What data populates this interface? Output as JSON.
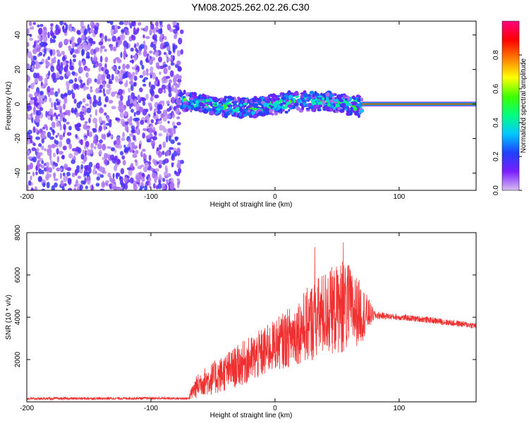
{
  "title": "YM08.2025.262.02.26.C30",
  "chart_data": [
    {
      "type": "heatmap",
      "name": "spectrogram",
      "xlabel": "Height of straight line (km)",
      "ylabel": "Frequency (Hz)",
      "xlim": [
        -200,
        162
      ],
      "ylim": [
        -50,
        48
      ],
      "xticks": [
        -200,
        -100,
        0,
        100
      ],
      "yticks": [
        -40,
        -20,
        0,
        20,
        40
      ],
      "colorbar": {
        "label": "Normalized spectral amplitude",
        "range": [
          0,
          1
        ],
        "ticks": [
          "0.0",
          "0.2",
          "0.4",
          "0.6",
          "0.8"
        ],
        "tick_values": [
          0.0,
          0.2,
          0.4,
          0.6,
          0.8
        ],
        "colormap": [
          "#d8bff0",
          "#7a1fff",
          "#1f3fff",
          "#00c8ff",
          "#00ff80",
          "#40ff00",
          "#ffff00",
          "#ff8000",
          "#ff0000",
          "#ff0080"
        ]
      },
      "regions": [
        {
          "desc": "noise",
          "x": [
            -200,
            -75
          ],
          "freq_spread": 48,
          "amplitude": 0.1
        },
        {
          "desc": "signal band",
          "x": [
            -75,
            70
          ],
          "center_freq_hz": 0,
          "half_width_hz": 5,
          "amplitude": 0.4
        },
        {
          "desc": "narrow tone",
          "x": [
            70,
            162
          ],
          "center_freq_hz": 0,
          "half_width_hz": 1.5,
          "amplitude": 0.95
        }
      ]
    },
    {
      "type": "line",
      "name": "snr",
      "xlabel": "Height of straight line (km)",
      "ylabel": "SNR (10 * v/v)",
      "xlim": [
        -200,
        162
      ],
      "ylim": [
        0,
        8000
      ],
      "xticks": [
        -200,
        -100,
        0,
        100
      ],
      "yticks": [
        2000,
        4000,
        6000,
        8000
      ],
      "color": "#f03030",
      "envelope": {
        "x": [
          -200,
          -100,
          -70,
          -65,
          -60,
          -50,
          -40,
          -30,
          -20,
          -10,
          0,
          10,
          20,
          30,
          40,
          50,
          55,
          60,
          70,
          80,
          90,
          100,
          120,
          140,
          162
        ],
        "mean": [
          150,
          170,
          160,
          600,
          900,
          1100,
          1400,
          1700,
          2000,
          2300,
          2700,
          3000,
          3400,
          3800,
          4200,
          4400,
          4500,
          4400,
          4200,
          4100,
          4050,
          4000,
          3900,
          3750,
          3600
        ],
        "amp": [
          60,
          60,
          60,
          500,
          600,
          800,
          900,
          1000,
          1100,
          1200,
          1200,
          1400,
          1600,
          1900,
          2000,
          2100,
          2200,
          2000,
          1400,
          200,
          150,
          150,
          150,
          150,
          150
        ]
      }
    }
  ]
}
